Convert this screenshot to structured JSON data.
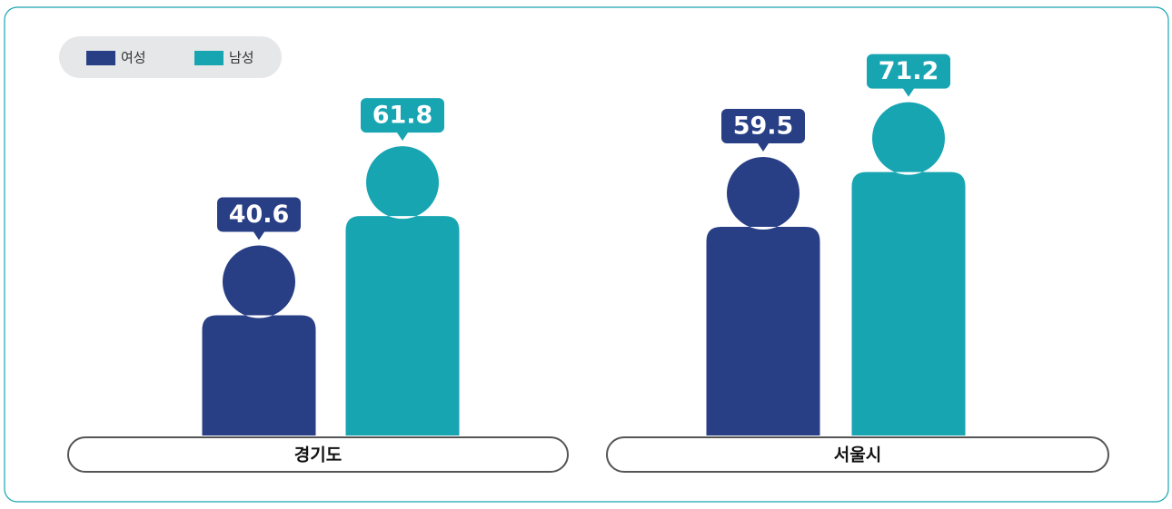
{
  "chart_data": {
    "type": "pictogram-bar",
    "categories": [
      "경기도",
      "서울시"
    ],
    "series": [
      {
        "name": "여성",
        "color": "#283e85",
        "values": [
          40.6,
          59.5
        ]
      },
      {
        "name": "남성",
        "color": "#17a5b2",
        "values": [
          61.8,
          71.2
        ]
      }
    ]
  }
}
